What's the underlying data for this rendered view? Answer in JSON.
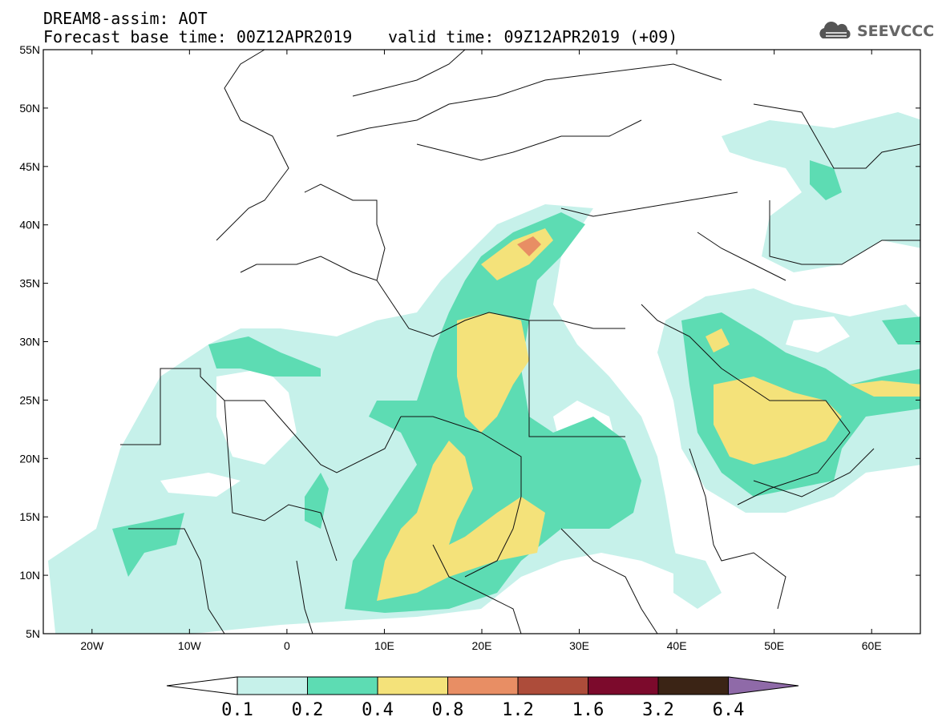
{
  "header": {
    "title": "DREAM8-assim: AOT",
    "base_time": "Forecast base time: 00Z12APR2019",
    "valid_time": "valid time: 09Z12APR2019 (+09)",
    "logo_text": "SEEVCCC"
  },
  "map": {
    "lon_labels": [
      "20W",
      "10W",
      "0",
      "10E",
      "20E",
      "30E",
      "40E",
      "50E",
      "60E"
    ],
    "lon_values": [
      -20,
      -10,
      0,
      10,
      20,
      30,
      40,
      50,
      60
    ],
    "lat_labels": [
      "55N",
      "50N",
      "45N",
      "40N",
      "35N",
      "30N",
      "25N",
      "20N",
      "15N",
      "10N",
      "5N"
    ],
    "lat_values": [
      55,
      50,
      45,
      40,
      35,
      30,
      25,
      20,
      15,
      10,
      5
    ],
    "lon_range": [
      -25,
      65
    ],
    "lat_range": [
      5,
      55
    ]
  },
  "colorbar": {
    "labels": [
      "0.1",
      "0.2",
      "0.4",
      "0.8",
      "1.2",
      "1.6",
      "3.2",
      "6.4"
    ],
    "colors": [
      "#ffffff",
      "#c6f1ea",
      "#5ddcb3",
      "#f4e27a",
      "#e88e64",
      "#ad4c3a",
      "#7c0a2c",
      "#3b2415",
      "#8f6aa8"
    ]
  },
  "field_colors": {
    "low": "#c6f1ea",
    "mid": "#5ddcb3",
    "high": "#f4e27a",
    "peak": "#e88e64"
  }
}
